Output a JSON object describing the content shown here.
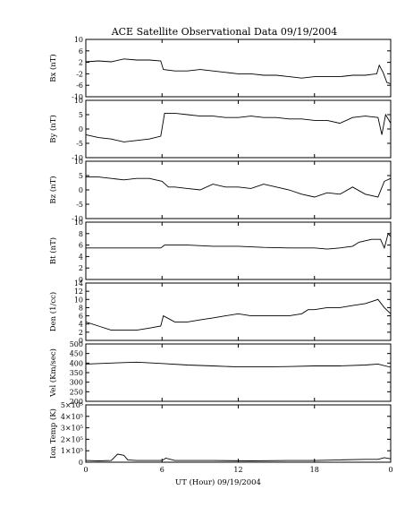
{
  "chart_data": {
    "type": "line",
    "title": "ACE Satellite Observational Data   09/19/2004",
    "xlabel": "UT (Hour)   09/19/2004",
    "x_ticks": [
      "0",
      "6",
      "12",
      "18",
      "0"
    ],
    "xlim": [
      0,
      24
    ],
    "line_color": "#000000",
    "panels": [
      {
        "name": "Bx",
        "ylabel": "Bx (nT)",
        "ylim": [
          -10,
          10
        ],
        "yticks": [
          "-10",
          "-6",
          "-2",
          "2",
          "6",
          "10"
        ],
        "ytick_values": [
          -10,
          -6,
          -2,
          2,
          6,
          10
        ],
        "series": [
          {
            "x": 0,
            "y": 2.2
          },
          {
            "x": 1,
            "y": 2.5
          },
          {
            "x": 2,
            "y": 2.2
          },
          {
            "x": 3,
            "y": 3.2
          },
          {
            "x": 4,
            "y": 2.8
          },
          {
            "x": 5,
            "y": 2.8
          },
          {
            "x": 5.9,
            "y": 2.5
          },
          {
            "x": 6.1,
            "y": -0.5
          },
          {
            "x": 7,
            "y": -1
          },
          {
            "x": 8,
            "y": -1
          },
          {
            "x": 9,
            "y": -0.5
          },
          {
            "x": 10,
            "y": -1
          },
          {
            "x": 11,
            "y": -1.5
          },
          {
            "x": 12,
            "y": -2
          },
          {
            "x": 13,
            "y": -2
          },
          {
            "x": 14,
            "y": -2.5
          },
          {
            "x": 15,
            "y": -2.5
          },
          {
            "x": 16,
            "y": -3
          },
          {
            "x": 17,
            "y": -3.5
          },
          {
            "x": 18,
            "y": -3
          },
          {
            "x": 19,
            "y": -3
          },
          {
            "x": 20,
            "y": -3
          },
          {
            "x": 21,
            "y": -2.5
          },
          {
            "x": 22,
            "y": -2.5
          },
          {
            "x": 22.9,
            "y": -2
          },
          {
            "x": 23.1,
            "y": 1
          },
          {
            "x": 23.4,
            "y": -1.5
          },
          {
            "x": 23.7,
            "y": -5
          },
          {
            "x": 24,
            "y": -5.5
          }
        ]
      },
      {
        "name": "By",
        "ylabel": "By (nT)",
        "ylim": [
          -10,
          10
        ],
        "yticks": [
          "-10",
          "-5",
          "0",
          "5",
          "10"
        ],
        "ytick_values": [
          -10,
          -5,
          0,
          5,
          10
        ],
        "series": [
          {
            "x": 0,
            "y": -2
          },
          {
            "x": 1,
            "y": -3
          },
          {
            "x": 2,
            "y": -3.5
          },
          {
            "x": 3,
            "y": -4.5
          },
          {
            "x": 4,
            "y": -4
          },
          {
            "x": 5,
            "y": -3.5
          },
          {
            "x": 5.9,
            "y": -2.5
          },
          {
            "x": 6.2,
            "y": 5.5
          },
          {
            "x": 7,
            "y": 5.5
          },
          {
            "x": 8,
            "y": 5
          },
          {
            "x": 9,
            "y": 4.5
          },
          {
            "x": 10,
            "y": 4.5
          },
          {
            "x": 11,
            "y": 4
          },
          {
            "x": 12,
            "y": 4
          },
          {
            "x": 13,
            "y": 4.5
          },
          {
            "x": 14,
            "y": 4
          },
          {
            "x": 15,
            "y": 4
          },
          {
            "x": 16,
            "y": 3.5
          },
          {
            "x": 17,
            "y": 3.5
          },
          {
            "x": 18,
            "y": 3
          },
          {
            "x": 19,
            "y": 3
          },
          {
            "x": 20,
            "y": 2
          },
          {
            "x": 21,
            "y": 4
          },
          {
            "x": 22,
            "y": 4.5
          },
          {
            "x": 23,
            "y": 4
          },
          {
            "x": 23.3,
            "y": -2
          },
          {
            "x": 23.6,
            "y": 5
          },
          {
            "x": 24,
            "y": 2
          }
        ]
      },
      {
        "name": "Bz",
        "ylabel": "Bz (nT)",
        "ylim": [
          -10,
          10
        ],
        "yticks": [
          "-10",
          "-5",
          "0",
          "5",
          "10"
        ],
        "ytick_values": [
          -10,
          -5,
          0,
          5,
          10
        ],
        "series": [
          {
            "x": 0,
            "y": 4.5
          },
          {
            "x": 1,
            "y": 4.5
          },
          {
            "x": 2,
            "y": 4
          },
          {
            "x": 3,
            "y": 3.5
          },
          {
            "x": 4,
            "y": 4
          },
          {
            "x": 5,
            "y": 4
          },
          {
            "x": 6,
            "y": 3
          },
          {
            "x": 6.5,
            "y": 1
          },
          {
            "x": 7,
            "y": 1
          },
          {
            "x": 8,
            "y": 0.5
          },
          {
            "x": 9,
            "y": 0
          },
          {
            "x": 10,
            "y": 2
          },
          {
            "x": 11,
            "y": 1
          },
          {
            "x": 12,
            "y": 1
          },
          {
            "x": 13,
            "y": 0.5
          },
          {
            "x": 14,
            "y": 2
          },
          {
            "x": 15,
            "y": 1
          },
          {
            "x": 16,
            "y": 0
          },
          {
            "x": 17,
            "y": -1.5
          },
          {
            "x": 18,
            "y": -2.5
          },
          {
            "x": 19,
            "y": -1
          },
          {
            "x": 20,
            "y": -1.5
          },
          {
            "x": 21,
            "y": 1
          },
          {
            "x": 22,
            "y": -1.5
          },
          {
            "x": 23,
            "y": -2.5
          },
          {
            "x": 23.5,
            "y": 3
          },
          {
            "x": 24,
            "y": 4
          }
        ]
      },
      {
        "name": "Bt",
        "ylabel": "Bt (nT)",
        "ylim": [
          0,
          10
        ],
        "yticks": [
          "0",
          "2",
          "4",
          "6",
          "8",
          "10"
        ],
        "ytick_values": [
          0,
          2,
          4,
          6,
          8,
          10
        ],
        "series": [
          {
            "x": 0,
            "y": 5.5
          },
          {
            "x": 2,
            "y": 5.5
          },
          {
            "x": 4,
            "y": 5.5
          },
          {
            "x": 5.9,
            "y": 5.5
          },
          {
            "x": 6.2,
            "y": 6
          },
          {
            "x": 8,
            "y": 6
          },
          {
            "x": 10,
            "y": 5.8
          },
          {
            "x": 12,
            "y": 5.8
          },
          {
            "x": 14,
            "y": 5.6
          },
          {
            "x": 16,
            "y": 5.5
          },
          {
            "x": 18,
            "y": 5.5
          },
          {
            "x": 19,
            "y": 5.3
          },
          {
            "x": 20,
            "y": 5.5
          },
          {
            "x": 21,
            "y": 5.8
          },
          {
            "x": 21.5,
            "y": 6.5
          },
          {
            "x": 22.5,
            "y": 7
          },
          {
            "x": 23.2,
            "y": 7
          },
          {
            "x": 23.5,
            "y": 5.5
          },
          {
            "x": 23.8,
            "y": 8
          },
          {
            "x": 24,
            "y": 7.5
          }
        ]
      },
      {
        "name": "Den",
        "ylabel": "Den (1/cc)",
        "ylim": [
          0,
          14
        ],
        "yticks": [
          "0",
          "2",
          "4",
          "6",
          "8",
          "10",
          "12",
          "14"
        ],
        "ytick_values": [
          0,
          2,
          4,
          6,
          8,
          10,
          12,
          14
        ],
        "series": [
          {
            "x": 0,
            "y": 4.5
          },
          {
            "x": 1,
            "y": 3.5
          },
          {
            "x": 2,
            "y": 2.5
          },
          {
            "x": 3,
            "y": 2.5
          },
          {
            "x": 4,
            "y": 2.5
          },
          {
            "x": 5,
            "y": 3
          },
          {
            "x": 5.9,
            "y": 3.5
          },
          {
            "x": 6.1,
            "y": 6
          },
          {
            "x": 7,
            "y": 4.5
          },
          {
            "x": 8,
            "y": 4.5
          },
          {
            "x": 9,
            "y": 5
          },
          {
            "x": 10,
            "y": 5.5
          },
          {
            "x": 11,
            "y": 6
          },
          {
            "x": 12,
            "y": 6.5
          },
          {
            "x": 13,
            "y": 6
          },
          {
            "x": 14,
            "y": 6
          },
          {
            "x": 15,
            "y": 6
          },
          {
            "x": 16,
            "y": 6
          },
          {
            "x": 17,
            "y": 6.5
          },
          {
            "x": 17.5,
            "y": 7.5
          },
          {
            "x": 18,
            "y": 7.5
          },
          {
            "x": 19,
            "y": 8
          },
          {
            "x": 20,
            "y": 8
          },
          {
            "x": 21,
            "y": 8.5
          },
          {
            "x": 22,
            "y": 9
          },
          {
            "x": 23,
            "y": 10
          },
          {
            "x": 23.5,
            "y": 8
          },
          {
            "x": 24,
            "y": 6.5
          }
        ]
      },
      {
        "name": "Vel",
        "ylabel": "Vel (Km/sec)",
        "ylim": [
          200,
          500
        ],
        "yticks": [
          "200",
          "250",
          "300",
          "350",
          "400",
          "450",
          "500"
        ],
        "ytick_values": [
          200,
          250,
          300,
          350,
          400,
          450,
          500
        ],
        "series": [
          {
            "x": 0,
            "y": 395
          },
          {
            "x": 2,
            "y": 400
          },
          {
            "x": 4,
            "y": 405
          },
          {
            "x": 6,
            "y": 398
          },
          {
            "x": 8,
            "y": 390
          },
          {
            "x": 10,
            "y": 385
          },
          {
            "x": 12,
            "y": 380
          },
          {
            "x": 14,
            "y": 380
          },
          {
            "x": 16,
            "y": 382
          },
          {
            "x": 18,
            "y": 385
          },
          {
            "x": 20,
            "y": 385
          },
          {
            "x": 22,
            "y": 390
          },
          {
            "x": 23,
            "y": 395
          },
          {
            "x": 24,
            "y": 378
          }
        ]
      },
      {
        "name": "Ion Temp",
        "ylabel": "Ion Temp (K)",
        "ylim": [
          0,
          500000
        ],
        "yticks": [
          "0",
          "1×10⁵",
          "2×10⁵",
          "3×10⁵",
          "4×10⁵",
          "5×10⁵"
        ],
        "ytick_values": [
          0,
          100000,
          200000,
          300000,
          400000,
          500000
        ],
        "series": [
          {
            "x": 0,
            "y": 15000
          },
          {
            "x": 1,
            "y": 12000
          },
          {
            "x": 2,
            "y": 15000
          },
          {
            "x": 2.5,
            "y": 70000
          },
          {
            "x": 3,
            "y": 60000
          },
          {
            "x": 3.3,
            "y": 20000
          },
          {
            "x": 4,
            "y": 15000
          },
          {
            "x": 6,
            "y": 15000
          },
          {
            "x": 6.3,
            "y": 35000
          },
          {
            "x": 7,
            "y": 15000
          },
          {
            "x": 10,
            "y": 15000
          },
          {
            "x": 13,
            "y": 12000
          },
          {
            "x": 16,
            "y": 15000
          },
          {
            "x": 18,
            "y": 15000
          },
          {
            "x": 20,
            "y": 20000
          },
          {
            "x": 22,
            "y": 25000
          },
          {
            "x": 23,
            "y": 25000
          },
          {
            "x": 23.5,
            "y": 40000
          },
          {
            "x": 24,
            "y": 30000
          }
        ]
      }
    ]
  }
}
